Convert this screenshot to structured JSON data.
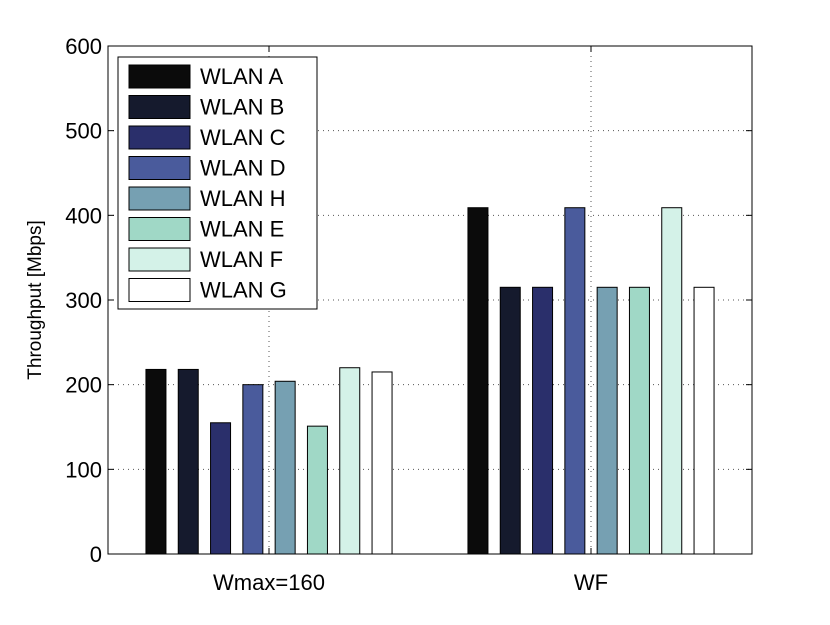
{
  "chart_data": {
    "type": "bar",
    "title": "",
    "xlabel": "",
    "ylabel": "Throughput [Mbps]",
    "ylim": [
      0,
      600
    ],
    "yticks": [
      0,
      100,
      200,
      300,
      400,
      500,
      600
    ],
    "ytick_labels": [
      "0",
      "100",
      "200",
      "300",
      "400",
      "500",
      "600"
    ],
    "grid": true,
    "legend_position": "top-left",
    "categories": [
      "Wmax=160",
      "WF"
    ],
    "series": [
      {
        "name": "WLAN A",
        "color": "#0b0b0b",
        "values": [
          218,
          409
        ]
      },
      {
        "name": "WLAN B",
        "color": "#151a2d",
        "values": [
          218,
          315
        ]
      },
      {
        "name": "WLAN C",
        "color": "#2a2f6b",
        "values": [
          155,
          315
        ]
      },
      {
        "name": "WLAN D",
        "color": "#4a5b9c",
        "values": [
          200,
          409
        ]
      },
      {
        "name": "WLAN H",
        "color": "#76a0b2",
        "values": [
          204,
          315
        ]
      },
      {
        "name": "WLAN E",
        "color": "#a0d8c6",
        "values": [
          151,
          315
        ]
      },
      {
        "name": "WLAN F",
        "color": "#d4f2e8",
        "values": [
          220,
          409
        ]
      },
      {
        "name": "WLAN G",
        "color": "#ffffff",
        "values": [
          215,
          315
        ]
      }
    ]
  }
}
